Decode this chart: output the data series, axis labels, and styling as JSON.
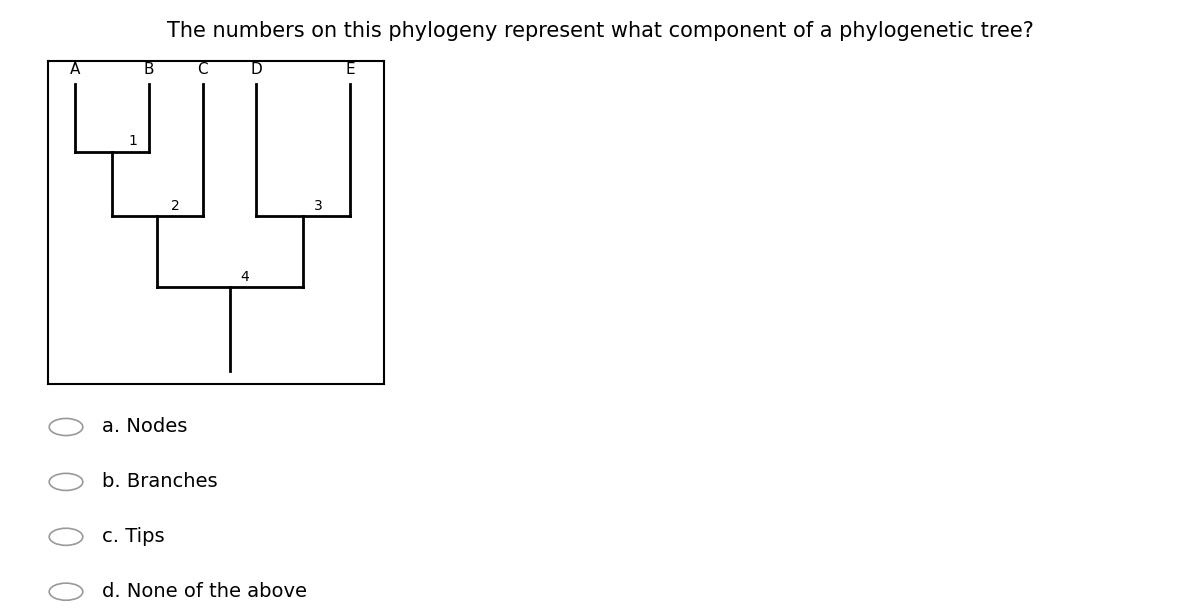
{
  "title": "The numbers on this phylogeny represent what component of a phylogenetic tree?",
  "title_color": "#000000",
  "title_fontsize": 15,
  "background_color": "#ffffff",
  "tips": [
    "A",
    "B",
    "C",
    "D",
    "E"
  ],
  "answers": [
    "a. Nodes",
    "b. Branches",
    "c. Tips",
    "d. None of the above"
  ],
  "answer_fontsize": 14,
  "radio_color": "#999999"
}
